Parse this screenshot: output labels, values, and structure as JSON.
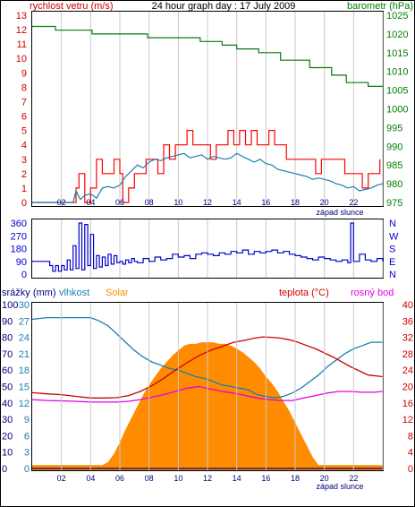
{
  "chart_data": [
    {
      "type": "line",
      "title": "24 hour graph day : 17 July 2009",
      "left_label": "rychlost vetru (m/s)",
      "right_label": "barometr (hPa)",
      "ylim_left": [
        0,
        13
      ],
      "left_ticks": [
        "0",
        "1",
        "2",
        "3",
        "4",
        "5",
        "6",
        "7",
        "8",
        "9",
        "10",
        "11",
        "12",
        "13"
      ],
      "ylim_right": [
        975,
        1025
      ],
      "right_ticks": [
        "975",
        "980",
        "985",
        "990",
        "995",
        "1000",
        "1005",
        "1010",
        "1015",
        "1020",
        "1025"
      ],
      "x_ticks": [
        "02",
        "04",
        "06",
        "08",
        "10",
        "12",
        "14",
        "16",
        "18",
        "20",
        "22",
        ""
      ],
      "sunset_label": "západ slunce",
      "series": [
        {
          "name": "barometr (hPa)",
          "axis": "right",
          "color": "#0a7a0a",
          "x": [
            0,
            1.5,
            1.6,
            4.0,
            4.1,
            7.8,
            7.9,
            10.5,
            11.5,
            13.0,
            14.0,
            15.5,
            17.0,
            19.0,
            20.5,
            21.5,
            23.0,
            24.0
          ],
          "values": [
            1022,
            1022,
            1021,
            1021,
            1020,
            1020,
            1019,
            1019,
            1018,
            1017,
            1016,
            1015,
            1013,
            1011,
            1009,
            1007,
            1006,
            1006
          ]
        },
        {
          "name": "rychlost vetru gust",
          "axis": "left",
          "color": "#ff0000",
          "x": [
            0,
            0.5,
            1.0,
            1.3,
            1.6,
            1.8,
            2.0,
            2.5,
            2.8,
            3.0,
            3.2,
            3.6,
            4.0,
            4.4,
            4.8,
            5.2,
            5.6,
            6.0,
            6.2,
            6.6,
            7.0,
            7.4,
            7.8,
            8.2,
            8.6,
            9.0,
            9.4,
            9.8,
            10.2,
            10.6,
            11.0,
            11.4,
            11.8,
            12.2,
            12.6,
            13.0,
            13.4,
            13.8,
            14.2,
            14.6,
            15.0,
            15.4,
            15.8,
            16.2,
            16.6,
            17.0,
            17.4,
            17.8,
            18.2,
            18.6,
            19.0,
            19.4,
            19.8,
            20.2,
            20.6,
            21.0,
            21.4,
            21.8,
            22.2,
            22.6,
            23.0,
            23.4,
            23.8
          ],
          "values": [
            0,
            0,
            0,
            0,
            0,
            0,
            0,
            0,
            0,
            1,
            2,
            0,
            1,
            3,
            2,
            2,
            3,
            2,
            0,
            1,
            2,
            2,
            3,
            3,
            2,
            4,
            3,
            4,
            4,
            5,
            4,
            4,
            4,
            3,
            4,
            4,
            5,
            4,
            5,
            4,
            5,
            4,
            4,
            5,
            4,
            4,
            3,
            3,
            3,
            3,
            3,
            2,
            3,
            3,
            3,
            3,
            2,
            2,
            2,
            1,
            2,
            2,
            3
          ]
        },
        {
          "name": "rychlost vetru",
          "axis": "left",
          "color": "#1a7fb0",
          "x": [
            0,
            2.8,
            3.0,
            3.3,
            3.6,
            4.0,
            4.4,
            4.8,
            5.2,
            5.6,
            6.0,
            6.4,
            6.8,
            7.2,
            7.6,
            8.0,
            8.4,
            8.8,
            9.2,
            9.6,
            10.0,
            10.4,
            10.8,
            11.2,
            11.6,
            12.0,
            12.4,
            12.8,
            13.2,
            13.6,
            14.0,
            14.4,
            14.8,
            15.2,
            15.6,
            16.0,
            16.4,
            16.8,
            17.2,
            17.6,
            18.0,
            18.4,
            18.8,
            19.2,
            19.6,
            20.0,
            20.4,
            20.8,
            21.2,
            21.6,
            22.0,
            22.4,
            22.8,
            23.2,
            23.6,
            24.0
          ],
          "values": [
            0,
            0,
            0.8,
            0.2,
            0.5,
            0.6,
            0.3,
            1.0,
            1.1,
            1.0,
            1.2,
            1.8,
            2.2,
            2.6,
            2.4,
            2.8,
            3.0,
            2.9,
            3.1,
            3.2,
            3.3,
            3.4,
            3.1,
            3.2,
            3.3,
            3.0,
            3.2,
            3.1,
            3.0,
            3.1,
            3.4,
            3.2,
            3.0,
            2.8,
            3.0,
            2.7,
            2.6,
            2.3,
            2.2,
            2.1,
            2.0,
            1.9,
            1.8,
            1.6,
            1.7,
            1.6,
            1.5,
            1.3,
            1.2,
            1.0,
            1.1,
            0.8,
            0.9,
            1.0,
            1.2,
            1.3
          ]
        }
      ]
    },
    {
      "type": "scatter",
      "right_label": [
        "N",
        "W",
        "S",
        "E",
        "N"
      ],
      "ylim": [
        0,
        360
      ],
      "left_ticks": [
        "0",
        "90",
        "180",
        "270",
        "360"
      ],
      "series": [
        {
          "name": "smer vetru",
          "color": "#0000cc",
          "x": [
            0,
            0.5,
            1.0,
            1.2,
            1.4,
            1.6,
            1.8,
            2.0,
            2.2,
            2.4,
            2.6,
            2.8,
            3.0,
            3.2,
            3.4,
            3.6,
            3.8,
            4.0,
            4.2,
            4.4,
            4.6,
            4.8,
            5.0,
            5.2,
            5.4,
            5.6,
            5.8,
            6.0,
            6.2,
            6.4,
            6.6,
            6.8,
            7.0,
            7.2,
            7.6,
            8.0,
            8.4,
            8.8,
            9.2,
            9.6,
            10.0,
            10.4,
            10.8,
            11.2,
            11.6,
            12.0,
            12.4,
            12.8,
            13.2,
            13.6,
            14.0,
            14.4,
            14.8,
            15.2,
            15.6,
            16.0,
            16.4,
            16.8,
            17.2,
            17.6,
            18.0,
            18.4,
            18.8,
            19.2,
            19.6,
            20.0,
            20.4,
            20.8,
            21.2,
            21.6,
            21.8,
            22.0,
            22.4,
            22.8,
            23.2,
            23.6,
            24.0
          ],
          "values": [
            90,
            90,
            90,
            60,
            20,
            60,
            20,
            60,
            30,
            100,
            30,
            200,
            40,
            360,
            30,
            350,
            60,
            280,
            40,
            130,
            50,
            120,
            60,
            140,
            70,
            130,
            80,
            90,
            70,
            100,
            80,
            110,
            90,
            80,
            110,
            90,
            120,
            100,
            110,
            140,
            120,
            130,
            110,
            140,
            150,
            140,
            130,
            150,
            140,
            160,
            150,
            170,
            140,
            160,
            150,
            160,
            170,
            150,
            160,
            140,
            130,
            120,
            110,
            100,
            120,
            110,
            100,
            90,
            100,
            80,
            360,
            90,
            140,
            100,
            90,
            110,
            90
          ]
        }
      ]
    },
    {
      "type": "line",
      "labels_top": {
        "srazky": "srážky (mm)",
        "vlhkost": "vlhkost",
        "solar": "Solar",
        "teplota": "teplota (°C)",
        "rosny_bod": "rosný bod"
      },
      "left_ticks_srazky": [
        "0",
        "10",
        "20",
        "30",
        "40",
        "50",
        "60",
        "70",
        "80",
        "90",
        "100"
      ],
      "left_ticks_vlhkost": [
        "0",
        "3",
        "6",
        "9",
        "12",
        "15",
        "18",
        "21",
        "24",
        "27",
        "30"
      ],
      "right_ticks": [
        "0",
        "4",
        "8",
        "12",
        "16",
        "20",
        "24",
        "28",
        "32",
        "36",
        "40"
      ],
      "ylim_left": [
        0,
        100
      ],
      "ylim_right": [
        0,
        40
      ],
      "x_ticks": [
        "02",
        "04",
        "06",
        "08",
        "10",
        "12",
        "14",
        "16",
        "18",
        "20",
        "22",
        ""
      ],
      "sunset_label": "západ slunce",
      "series": [
        {
          "name": "Solar",
          "axis": "left",
          "color": "#ff8c00",
          "x": [
            0,
            4.8,
            5.2,
            5.6,
            6.0,
            6.4,
            6.8,
            7.2,
            7.6,
            8.0,
            8.4,
            8.8,
            9.2,
            9.6,
            10.0,
            10.4,
            10.8,
            11.2,
            11.6,
            12.0,
            12.4,
            12.8,
            13.2,
            13.6,
            14.0,
            14.4,
            14.8,
            15.2,
            15.6,
            16.0,
            16.4,
            16.8,
            17.2,
            17.6,
            18.0,
            18.4,
            18.8,
            19.2,
            19.6,
            24.0
          ],
          "values": [
            2,
            2,
            4,
            9,
            16,
            24,
            31,
            38,
            45,
            51,
            56,
            61,
            65,
            69,
            72,
            75,
            76,
            76,
            77,
            77,
            77,
            76,
            76,
            75,
            73,
            71,
            68,
            65,
            61,
            56,
            52,
            47,
            41,
            35,
            28,
            21,
            14,
            7,
            2,
            2
          ]
        },
        {
          "name": "vlhkost",
          "axis": "left",
          "color": "#1a7fb0",
          "x": [
            0,
            1.0,
            2.0,
            3.0,
            3.6,
            4.0,
            4.6,
            5.2,
            5.8,
            6.4,
            7.0,
            7.6,
            8.2,
            8.8,
            9.4,
            10.0,
            10.6,
            11.2,
            11.8,
            12.4,
            13.0,
            13.6,
            14.2,
            14.8,
            15.4,
            16.0,
            16.6,
            17.2,
            17.8,
            18.4,
            19.0,
            19.6,
            20.2,
            20.8,
            21.4,
            22.0,
            22.6,
            23.2,
            24.0
          ],
          "values": [
            91,
            92,
            92,
            92,
            92,
            92,
            90,
            87,
            82,
            77,
            72,
            68,
            65,
            63,
            61,
            60,
            58,
            56,
            55,
            53,
            51,
            50,
            49,
            48,
            45,
            44,
            43,
            44,
            46,
            49,
            53,
            57,
            62,
            66,
            70,
            73,
            75,
            77,
            77
          ]
        },
        {
          "name": "teplota (°C)",
          "axis": "right",
          "color": "#cc0000",
          "x": [
            0,
            1.0,
            2.0,
            3.0,
            4.0,
            5.0,
            5.8,
            6.6,
            7.4,
            8.2,
            9.0,
            9.8,
            10.6,
            11.4,
            12.2,
            13.0,
            13.8,
            14.6,
            15.2,
            15.8,
            16.4,
            17.0,
            17.6,
            18.2,
            18.8,
            19.4,
            20.0,
            20.6,
            21.2,
            21.8,
            22.4,
            23.0,
            24.0
          ],
          "values": [
            18.5,
            18.2,
            18.0,
            17.6,
            17.2,
            17.2,
            17.3,
            17.8,
            18.8,
            20.2,
            22.0,
            24.0,
            25.8,
            27.5,
            28.8,
            29.8,
            30.8,
            31.3,
            31.8,
            32.1,
            32.0,
            31.8,
            31.4,
            30.8,
            30.0,
            29.2,
            28.2,
            27.2,
            26.0,
            24.8,
            23.8,
            22.8,
            22.4
          ]
        },
        {
          "name": "rosný bod",
          "axis": "right",
          "color": "#e000e0",
          "x": [
            0,
            1.0,
            2.0,
            3.0,
            4.0,
            5.0,
            5.8,
            6.6,
            7.4,
            8.2,
            9.0,
            9.8,
            10.6,
            11.4,
            12.2,
            13.0,
            13.8,
            14.6,
            15.4,
            16.2,
            17.0,
            17.8,
            18.6,
            19.4,
            20.2,
            21.0,
            21.8,
            22.6,
            23.4,
            24.0
          ],
          "values": [
            16.8,
            16.6,
            16.5,
            16.4,
            16.2,
            16.2,
            16.2,
            16.4,
            16.8,
            17.4,
            18.0,
            18.8,
            19.6,
            20.0,
            19.4,
            18.8,
            18.4,
            17.8,
            17.2,
            16.8,
            16.6,
            16.6,
            17.2,
            17.8,
            18.4,
            18.8,
            18.8,
            18.6,
            18.6,
            18.8
          ]
        },
        {
          "name": "srážky (mm)",
          "axis": "left",
          "color": "#000080",
          "x": [
            0,
            24
          ],
          "values": [
            0,
            0
          ]
        }
      ]
    }
  ]
}
